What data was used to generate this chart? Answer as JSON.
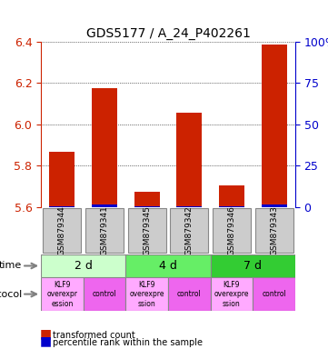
{
  "title": "GDS5177 / A_24_P402261",
  "samples": [
    "GSM879344",
    "GSM879341",
    "GSM879345",
    "GSM879342",
    "GSM879346",
    "GSM879343"
  ],
  "red_values": [
    5.865,
    6.175,
    5.675,
    6.055,
    5.705,
    6.385
  ],
  "blue_values_pct": [
    3,
    10,
    5,
    4,
    4,
    10
  ],
  "ylim": [
    5.6,
    6.4
  ],
  "yticks": [
    5.6,
    5.8,
    6.0,
    6.2,
    6.4
  ],
  "right_yticks": [
    0,
    25,
    50,
    75,
    100
  ],
  "right_ytick_labels": [
    "0",
    "25",
    "50",
    "75",
    "100%"
  ],
  "red_color": "#cc2200",
  "blue_color": "#0000cc",
  "bar_width": 0.6,
  "time_groups": [
    {
      "label": "2 d",
      "start": 0,
      "end": 2,
      "color": "#ccffcc"
    },
    {
      "label": "4 d",
      "start": 2,
      "end": 4,
      "color": "#66ee66"
    },
    {
      "label": "7 d",
      "start": 4,
      "end": 6,
      "color": "#33cc33"
    }
  ],
  "protocol_groups": [
    {
      "label": "KLF9\noverexpr\nession",
      "start": 0,
      "end": 1,
      "color": "#ffaaff"
    },
    {
      "label": "control",
      "start": 1,
      "end": 2,
      "color": "#ee66ee"
    },
    {
      "label": "KLF9\noverexpre\nssion",
      "start": 2,
      "end": 3,
      "color": "#ffaaff"
    },
    {
      "label": "control",
      "start": 3,
      "end": 4,
      "color": "#ee66ee"
    },
    {
      "label": "KLF9\noverexpre\nssion",
      "start": 4,
      "end": 5,
      "color": "#ffaaff"
    },
    {
      "label": "control",
      "start": 5,
      "end": 6,
      "color": "#ee66ee"
    }
  ],
  "legend_red_label": "transformed count",
  "legend_blue_label": "percentile rank within the sample",
  "sample_box_color": "#cccccc",
  "sample_box_border": "#888888"
}
